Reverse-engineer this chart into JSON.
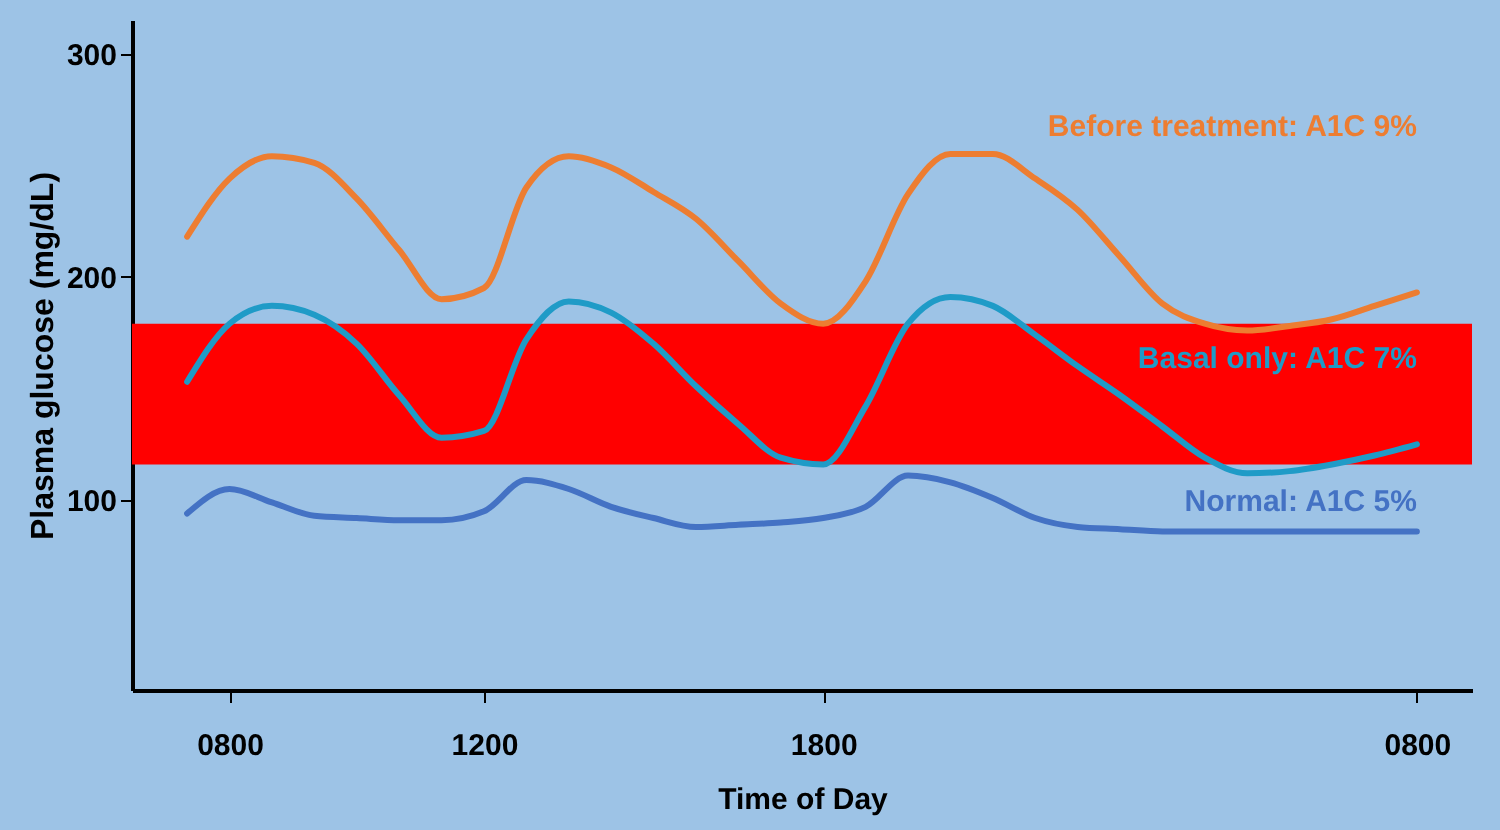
{
  "chart_data": {
    "type": "line",
    "xlabel": "Time of Day",
    "ylabel": "Plasma glucose (mg/dL)",
    "categories": [
      null,
      null,
      "0800",
      null,
      null,
      null,
      null,
      null,
      "1200",
      null,
      null,
      null,
      null,
      null,
      null,
      null,
      "1800",
      null,
      null,
      null,
      null,
      null,
      null,
      null,
      null,
      null,
      null,
      null,
      null,
      null,
      "0800",
      null
    ],
    "ylim": [
      15,
      315
    ],
    "yticks": [
      100,
      200,
      300
    ],
    "grid": false,
    "line_style": "solid",
    "series": [
      {
        "name": "Before treatment: A1C 9%",
        "color": "#ed7d31",
        "values": [
          null,
          218,
          244,
          254,
          251,
          235,
          212,
          190,
          195,
          240,
          254,
          249,
          238,
          226,
          207,
          188,
          179,
          198,
          237,
          255,
          255,
          244,
          230,
          209,
          188,
          179,
          176,
          178,
          181,
          187,
          193,
          null
        ]
      },
      {
        "name": "Basal only: A1C 7%",
        "color": "#1f9bc7",
        "values": [
          null,
          153,
          179,
          187,
          183,
          170,
          147,
          128,
          131,
          172,
          189,
          184,
          170,
          151,
          134,
          119,
          116,
          142,
          179,
          191,
          187,
          174,
          160,
          147,
          133,
          119,
          112,
          113,
          116,
          120,
          125,
          null
        ]
      },
      {
        "name": "Normal: A1C 5%",
        "color": "#4472c4",
        "values": [
          null,
          94,
          105,
          99,
          93,
          92,
          91,
          91,
          95,
          109,
          105,
          97,
          92,
          88,
          89,
          90,
          92,
          97,
          111,
          108,
          101,
          92,
          88,
          87,
          86,
          86,
          86,
          86,
          86,
          86,
          86,
          null
        ]
      }
    ],
    "bands": [
      {
        "axis": "y",
        "from": 116,
        "to": 179,
        "color": "#ff0000"
      }
    ]
  }
}
